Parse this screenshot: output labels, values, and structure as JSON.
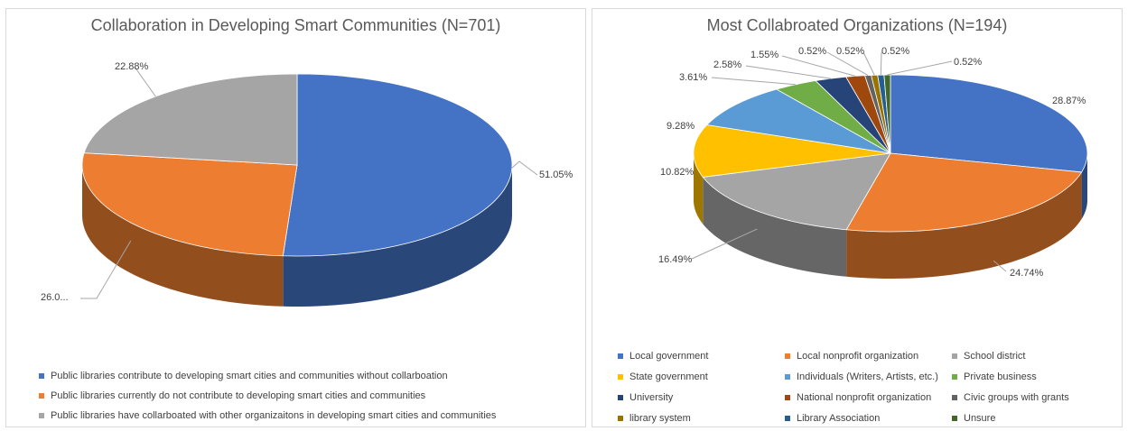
{
  "chart_data": [
    {
      "type": "pie",
      "title": "Collaboration in Developing Smart Communities (N=701)",
      "legend_position": "bottom",
      "series": [
        {
          "name": "Public libraries contribute to developing smart cities and communities without collarboation",
          "value": 51.05,
          "label": "51.05%",
          "color": "#4472c4"
        },
        {
          "name": "Public libraries currently do not contribute to developing smart cities and communities",
          "value": 26.07,
          "label": "26.0...",
          "color": "#ed7d31"
        },
        {
          "name": "Public libraries have collarboated with other organizaitons in developing smart cities and communities",
          "value": 22.88,
          "label": "22.88%",
          "color": "#a5a5a5"
        }
      ]
    },
    {
      "type": "pie",
      "title": "Most Collabroated Organizations (N=194)",
      "legend_position": "bottom",
      "series": [
        {
          "name": "Local government",
          "value": 28.87,
          "label": "28.87%",
          "color": "#4472c4"
        },
        {
          "name": "Local nonprofit organization",
          "value": 24.74,
          "label": "24.74%",
          "color": "#ed7d31"
        },
        {
          "name": "School district",
          "value": 16.49,
          "label": "16.49%",
          "color": "#a5a5a5"
        },
        {
          "name": "State government",
          "value": 10.82,
          "label": "10.82%",
          "color": "#ffc000"
        },
        {
          "name": "Individuals (Writers, Artists, etc.)",
          "value": 9.28,
          "label": "9.28%",
          "color": "#5b9bd5"
        },
        {
          "name": "Private business",
          "value": 3.61,
          "label": "3.61%",
          "color": "#70ad47"
        },
        {
          "name": "University",
          "value": 2.58,
          "label": "2.58%",
          "color": "#264478"
        },
        {
          "name": "National nonprofit organization",
          "value": 1.55,
          "label": "1.55%",
          "color": "#9e480e"
        },
        {
          "name": "Civic groups with grants",
          "value": 0.52,
          "label": "0.52%",
          "color": "#636363"
        },
        {
          "name": "library system",
          "value": 0.52,
          "label": "0.52%",
          "color": "#997300"
        },
        {
          "name": "Library Association",
          "value": 0.52,
          "label": "0.52%",
          "color": "#255e91"
        },
        {
          "name": "Unsure",
          "value": 0.52,
          "label": "0.52%",
          "color": "#43682b"
        }
      ]
    }
  ]
}
